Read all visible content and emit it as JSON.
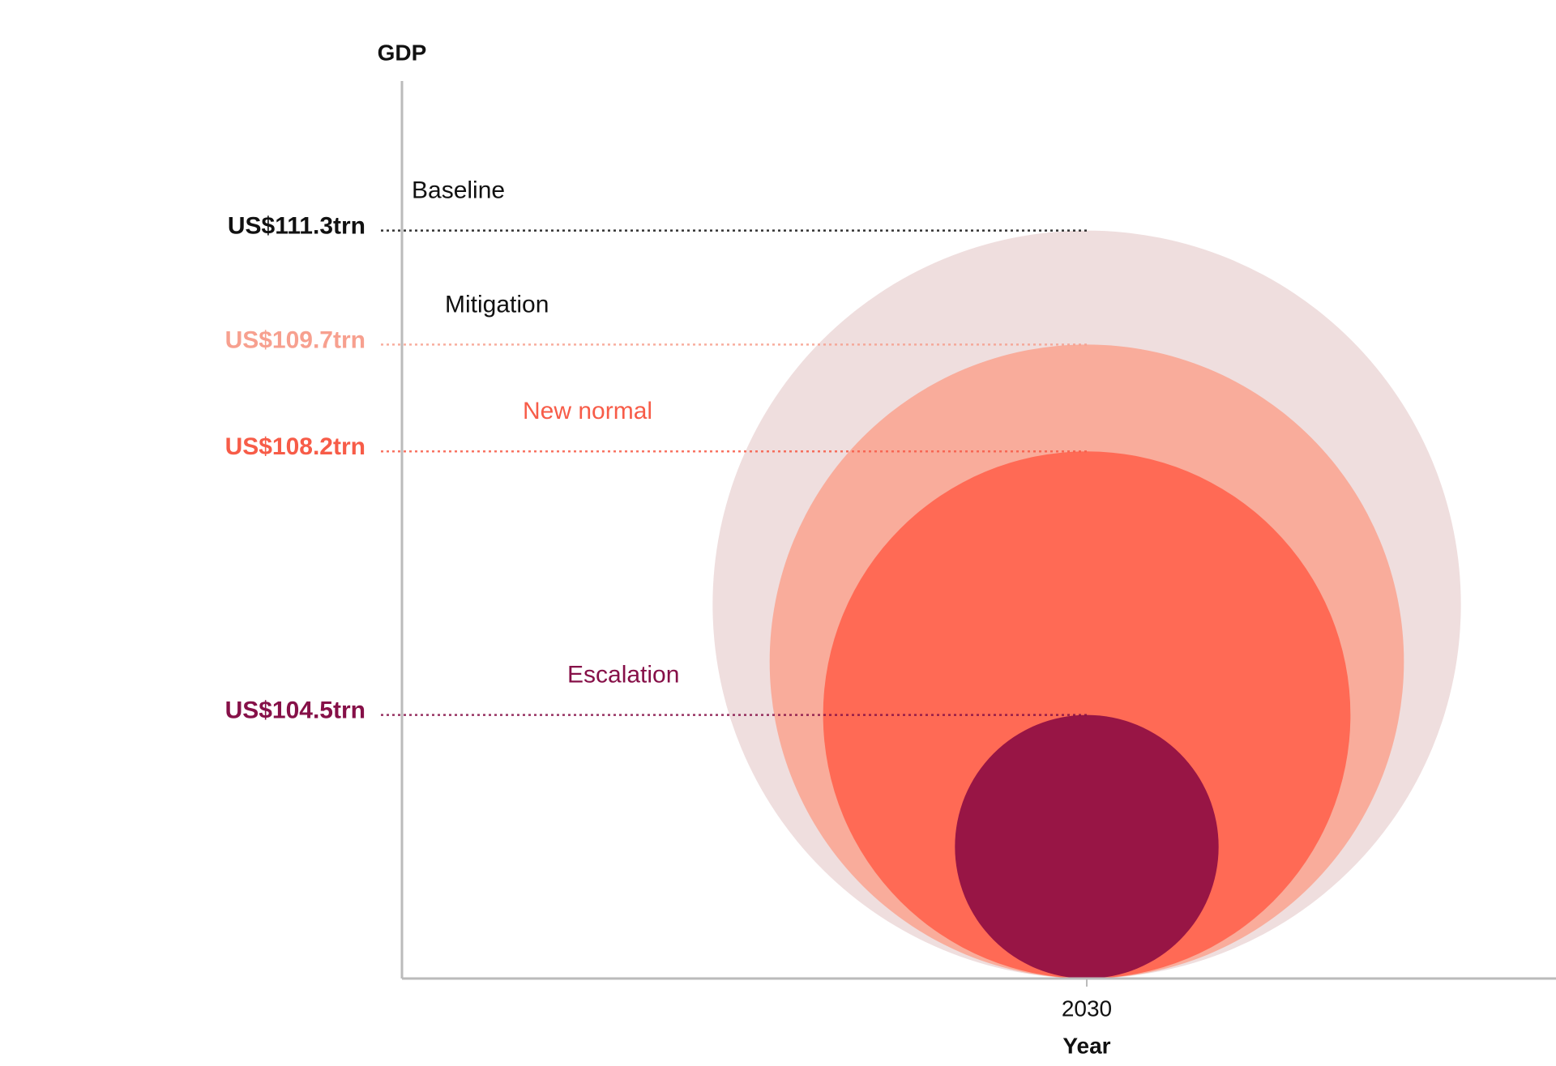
{
  "chart_data": {
    "type": "bubble",
    "y_label": "GDP",
    "x_label": "Year",
    "categories": [
      "2030"
    ],
    "ylim": [
      100.8,
      113.4
    ],
    "series": [
      {
        "name": "Baseline",
        "color": "#efdede",
        "label_color": "#111111",
        "name_color": "#111111",
        "values": [
          111.3
        ],
        "value_labels": [
          "US$111.3trn"
        ]
      },
      {
        "name": "Mitigation",
        "color": "#f9ac9b",
        "label_color": "#f7a08f",
        "name_color": "#111111",
        "values": [
          109.7
        ],
        "value_labels": [
          "US$109.7trn"
        ]
      },
      {
        "name": "New normal",
        "color": "#ff6a55",
        "label_color": "#f75c48",
        "name_color": "#f75c48",
        "values": [
          108.2
        ],
        "value_labels": [
          "US$108.2trn"
        ]
      },
      {
        "name": "Escalation",
        "color": "#981545",
        "label_color": "#861048",
        "name_color": "#861048",
        "values": [
          104.5
        ],
        "value_labels": [
          "US$104.5trn"
        ]
      }
    ]
  }
}
